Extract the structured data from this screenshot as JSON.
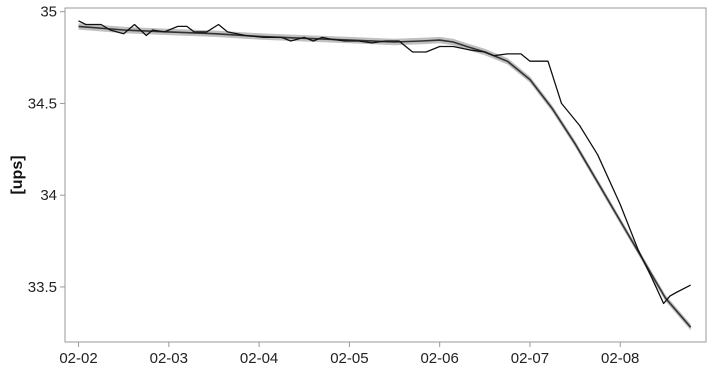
{
  "chart_data": {
    "type": "line",
    "title": "",
    "xlabel": "",
    "ylabel": "[ups]",
    "x_ticks": [
      "02-02",
      "02-03",
      "02-04",
      "02-05",
      "02-06",
      "02-07",
      "02-08"
    ],
    "y_ticks": [
      33.5,
      34,
      34.5,
      35
    ],
    "xlim": [
      1.85,
      8.95
    ],
    "ylim": [
      33.2,
      35.02
    ],
    "grid": false,
    "legend": "none",
    "colors": {
      "raw": "#111111",
      "smooth": "#333333",
      "band": "#b5b5b5",
      "axis": "#999999"
    },
    "series": [
      {
        "kind": "raw",
        "points": [
          [
            2.0,
            34.95
          ],
          [
            2.08,
            34.93
          ],
          [
            2.25,
            34.93
          ],
          [
            2.35,
            34.9
          ],
          [
            2.5,
            34.88
          ],
          [
            2.62,
            34.93
          ],
          [
            2.75,
            34.87
          ],
          [
            2.82,
            34.9
          ],
          [
            2.95,
            34.89
          ],
          [
            3.1,
            34.92
          ],
          [
            3.2,
            34.92
          ],
          [
            3.28,
            34.89
          ],
          [
            3.42,
            34.89
          ],
          [
            3.55,
            34.93
          ],
          [
            3.65,
            34.89
          ],
          [
            3.85,
            34.87
          ],
          [
            4.05,
            34.86
          ],
          [
            4.25,
            34.86
          ],
          [
            4.35,
            34.84
          ],
          [
            4.5,
            34.86
          ],
          [
            4.6,
            34.84
          ],
          [
            4.7,
            34.86
          ],
          [
            4.8,
            34.85
          ],
          [
            4.95,
            34.84
          ],
          [
            5.1,
            34.84
          ],
          [
            5.25,
            34.83
          ],
          [
            5.4,
            34.84
          ],
          [
            5.55,
            34.84
          ],
          [
            5.7,
            34.78
          ],
          [
            5.85,
            34.78
          ],
          [
            6.0,
            34.81
          ],
          [
            6.15,
            34.81
          ],
          [
            6.35,
            34.79
          ],
          [
            6.5,
            34.78
          ],
          [
            6.6,
            34.76
          ],
          [
            6.75,
            34.77
          ],
          [
            6.9,
            34.77
          ],
          [
            7.0,
            34.73
          ],
          [
            7.2,
            34.73
          ],
          [
            7.35,
            34.5
          ],
          [
            7.55,
            34.38
          ],
          [
            7.75,
            34.22
          ],
          [
            8.0,
            33.95
          ],
          [
            8.2,
            33.7
          ],
          [
            8.35,
            33.55
          ],
          [
            8.48,
            33.41
          ],
          [
            8.55,
            33.45
          ],
          [
            8.62,
            33.47
          ],
          [
            8.78,
            33.51
          ]
        ]
      },
      {
        "kind": "smooth",
        "points": [
          [
            2.0,
            34.92
          ],
          [
            2.5,
            34.9
          ],
          [
            3.0,
            34.89
          ],
          [
            3.5,
            34.88
          ],
          [
            4.0,
            34.865
          ],
          [
            4.5,
            34.855
          ],
          [
            5.0,
            34.845
          ],
          [
            5.5,
            34.835
          ],
          [
            5.8,
            34.84
          ],
          [
            6.0,
            34.845
          ],
          [
            6.15,
            34.835
          ],
          [
            6.3,
            34.81
          ],
          [
            6.5,
            34.78
          ],
          [
            6.75,
            34.73
          ],
          [
            7.0,
            34.63
          ],
          [
            7.25,
            34.47
          ],
          [
            7.5,
            34.28
          ],
          [
            7.75,
            34.07
          ],
          [
            8.0,
            33.86
          ],
          [
            8.25,
            33.65
          ],
          [
            8.5,
            33.44
          ],
          [
            8.78,
            33.28
          ]
        ]
      }
    ]
  }
}
